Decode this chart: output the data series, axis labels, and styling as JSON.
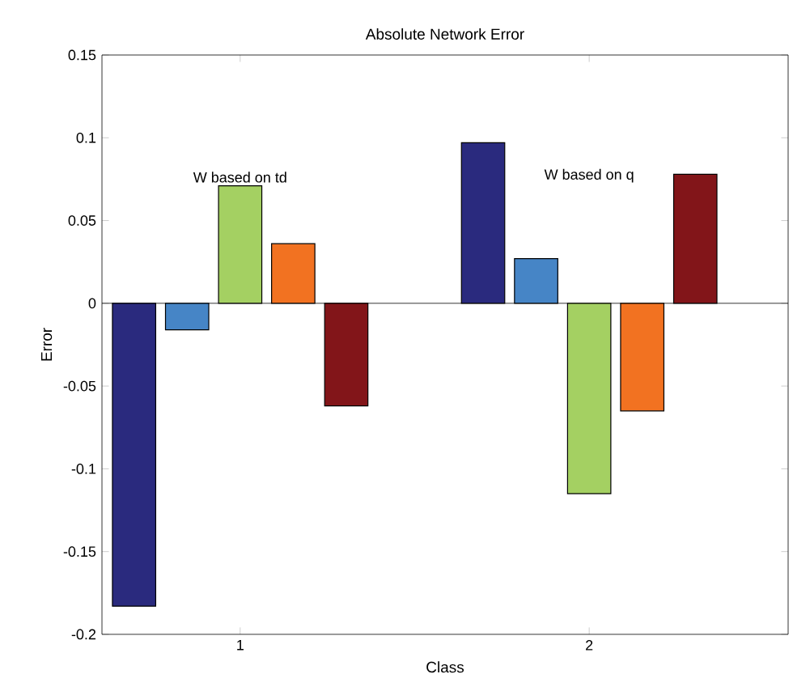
{
  "chart_data": {
    "type": "bar",
    "title": "Absolute Network Error",
    "xlabel": "Class",
    "ylabel": "Error",
    "categories": [
      "1",
      "2"
    ],
    "series": [
      {
        "color": "#2a2a7e",
        "values": [
          -0.183,
          0.097
        ]
      },
      {
        "color": "#4685c6",
        "values": [
          -0.016,
          0.027
        ]
      },
      {
        "color": "#a4d062",
        "values": [
          0.071,
          -0.115
        ]
      },
      {
        "color": "#f27221",
        "values": [
          0.036,
          -0.065
        ]
      },
      {
        "color": "#821519",
        "values": [
          -0.062,
          0.078
        ]
      }
    ],
    "ylim": [
      -0.2,
      0.15
    ],
    "yticks": [
      -0.2,
      -0.15,
      -0.1,
      -0.05,
      0,
      0.05,
      0.1,
      0.15
    ],
    "annotations": [
      "W based on td",
      "W based on q"
    ]
  }
}
